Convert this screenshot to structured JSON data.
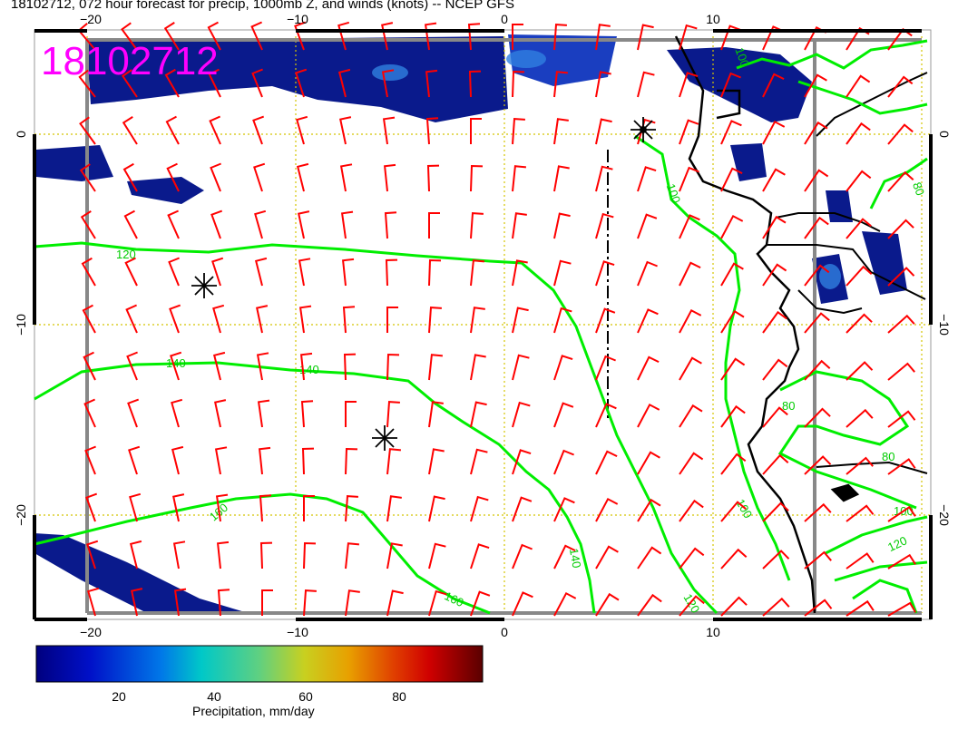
{
  "title": "18102712, 072 hour forecast for precip, 1000mb Z, and winds (knots) -- NCEP GFS",
  "stamp": "18102712",
  "lon_ticks_top": [
    "−20",
    "−10",
    "0",
    "10"
  ],
  "lon_ticks_bottom": [
    "−20",
    "−10",
    "0",
    "10"
  ],
  "lat_ticks_left": [
    "0",
    "−10",
    "−20"
  ],
  "lat_ticks_right": [
    "0",
    "−10",
    "−20"
  ],
  "contour_labels": [
    "120",
    "140",
    "140",
    "160",
    "160",
    "100",
    "120",
    "140",
    "100",
    "80",
    "80",
    "120",
    "100",
    "100",
    "80"
  ],
  "colorbar": {
    "title": "Precipitation, mm/day",
    "ticks": [
      "20",
      "40",
      "60",
      "80"
    ]
  },
  "colors": {
    "stamp": "#ff00ff",
    "wind_barbs": "#ff0000",
    "contours": "#00ee00",
    "precip_low": "#0a1a8c",
    "precip_mid": "#1a5fd6",
    "coastline": "#000000"
  }
}
